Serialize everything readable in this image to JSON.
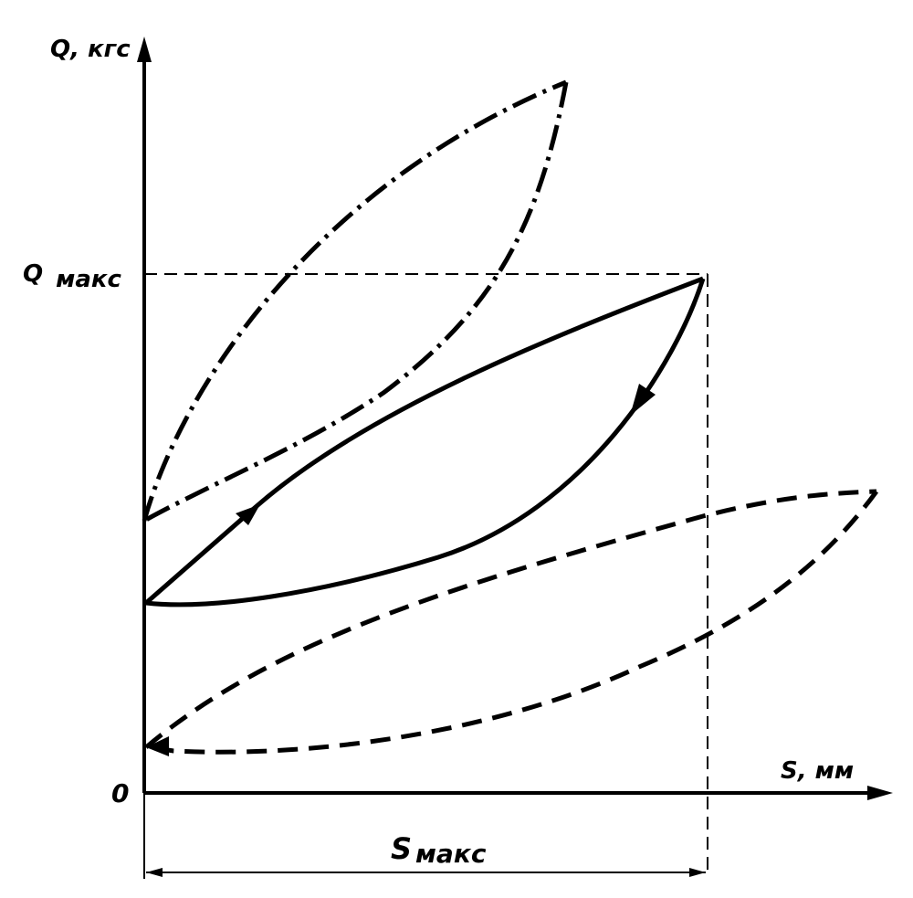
{
  "axes": {
    "y_label": "Q, кгс",
    "x_label": "S, мм",
    "origin": "0"
  },
  "markers": {
    "q_max": {
      "symbol": "Q",
      "sub": "макс"
    },
    "s_max": {
      "symbol": "S",
      "sub": "макс"
    }
  }
}
